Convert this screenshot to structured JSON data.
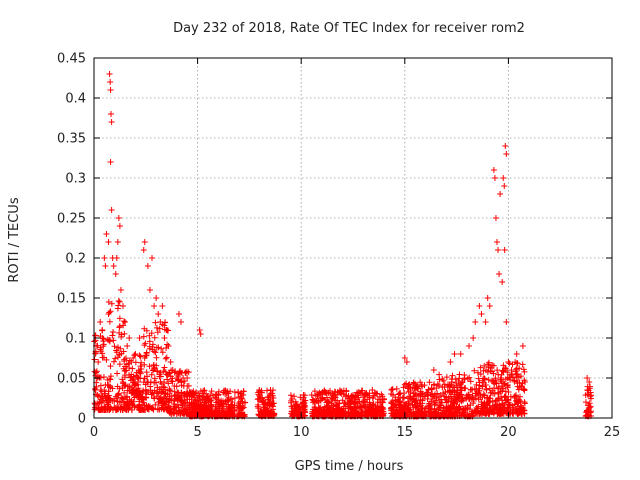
{
  "chart_data": {
    "type": "scatter",
    "title": "Day 232 of 2018, Rate Of TEC Index for receiver rom2",
    "xlabel": "GPS time / hours",
    "ylabel": "ROTI / TECUs",
    "xlim": [
      0,
      25
    ],
    "ylim": [
      0,
      0.45
    ],
    "xticks": [
      0,
      5,
      10,
      15,
      20,
      25
    ],
    "xtick_labels": [
      "0",
      "5",
      "10",
      "15",
      "20",
      "25"
    ],
    "yticks": [
      0,
      0.05,
      0.1,
      0.15,
      0.2,
      0.25,
      0.3,
      0.35,
      0.4,
      0.45
    ],
    "ytick_labels": [
      "0",
      "0.05",
      "0.1",
      "0.15",
      "0.2",
      "0.25",
      "0.3",
      "0.35",
      "0.4",
      "0.45"
    ],
    "grid": true,
    "marker": "+",
    "marker_color": "#ff0000",
    "series": [
      {
        "name": "ROTI",
        "points": [
          [
            0.1,
            0.09
          ],
          [
            0.2,
            0.07
          ],
          [
            0.3,
            0.12
          ],
          [
            0.4,
            0.11
          ],
          [
            0.5,
            0.2
          ],
          [
            0.55,
            0.19
          ],
          [
            0.6,
            0.23
          ],
          [
            0.7,
            0.22
          ],
          [
            0.75,
            0.43
          ],
          [
            0.78,
            0.42
          ],
          [
            0.8,
            0.41
          ],
          [
            0.82,
            0.38
          ],
          [
            0.85,
            0.37
          ],
          [
            0.8,
            0.32
          ],
          [
            0.85,
            0.26
          ],
          [
            0.9,
            0.2
          ],
          [
            0.95,
            0.19
          ],
          [
            1.05,
            0.18
          ],
          [
            1.1,
            0.2
          ],
          [
            1.2,
            0.25
          ],
          [
            1.25,
            0.24
          ],
          [
            1.15,
            0.22
          ],
          [
            1.3,
            0.16
          ],
          [
            1.4,
            0.14
          ],
          [
            1.5,
            0.12
          ],
          [
            1.6,
            0.09
          ],
          [
            1.7,
            0.1
          ],
          [
            1.8,
            0.07
          ],
          [
            2.0,
            0.08
          ],
          [
            2.2,
            0.1
          ],
          [
            2.4,
            0.21
          ],
          [
            2.45,
            0.22
          ],
          [
            2.6,
            0.19
          ],
          [
            2.7,
            0.16
          ],
          [
            2.8,
            0.2
          ],
          [
            2.9,
            0.14
          ],
          [
            3.0,
            0.15
          ],
          [
            3.1,
            0.13
          ],
          [
            3.2,
            0.12
          ],
          [
            3.3,
            0.14
          ],
          [
            3.4,
            0.1
          ],
          [
            3.5,
            0.11
          ],
          [
            3.6,
            0.09
          ],
          [
            3.7,
            0.07
          ],
          [
            3.8,
            0.06
          ],
          [
            4.0,
            0.05
          ],
          [
            4.1,
            0.13
          ],
          [
            4.2,
            0.12
          ],
          [
            4.3,
            0.05
          ],
          [
            4.5,
            0.04
          ],
          [
            5.1,
            0.11
          ],
          [
            5.15,
            0.105
          ],
          [
            15.0,
            0.075
          ],
          [
            15.1,
            0.07
          ],
          [
            16.4,
            0.06
          ],
          [
            17.2,
            0.07
          ],
          [
            17.4,
            0.08
          ],
          [
            17.7,
            0.08
          ],
          [
            18.1,
            0.09
          ],
          [
            18.3,
            0.1
          ],
          [
            18.4,
            0.12
          ],
          [
            18.6,
            0.14
          ],
          [
            18.7,
            0.13
          ],
          [
            18.9,
            0.12
          ],
          [
            19.0,
            0.15
          ],
          [
            19.1,
            0.14
          ],
          [
            19.3,
            0.31
          ],
          [
            19.35,
            0.3
          ],
          [
            19.4,
            0.25
          ],
          [
            19.45,
            0.22
          ],
          [
            19.5,
            0.21
          ],
          [
            19.55,
            0.18
          ],
          [
            19.6,
            0.28
          ],
          [
            19.7,
            0.17
          ],
          [
            19.75,
            0.3
          ],
          [
            19.8,
            0.29
          ],
          [
            19.85,
            0.34
          ],
          [
            19.9,
            0.33
          ],
          [
            19.82,
            0.21
          ],
          [
            19.9,
            0.12
          ],
          [
            20.0,
            0.07
          ],
          [
            20.4,
            0.08
          ],
          [
            20.7,
            0.09
          ],
          [
            20.8,
            0.045
          ],
          [
            23.8,
            0.05
          ],
          [
            23.9,
            0.045
          ]
        ]
      }
    ],
    "density_bands": [
      {
        "x": [
          0.0,
          0.7
        ],
        "y": [
          0.01,
          0.11
        ]
      },
      {
        "x": [
          0.7,
          1.6
        ],
        "y": [
          0.01,
          0.15
        ]
      },
      {
        "x": [
          1.6,
          2.4
        ],
        "y": [
          0.01,
          0.08
        ]
      },
      {
        "x": [
          2.4,
          3.6
        ],
        "y": [
          0.01,
          0.12
        ]
      },
      {
        "x": [
          3.6,
          4.6
        ],
        "y": [
          0.005,
          0.06
        ]
      },
      {
        "x": [
          4.6,
          7.3
        ],
        "y": [
          0.002,
          0.035
        ]
      },
      {
        "x": [
          7.9,
          8.7
        ],
        "y": [
          0.002,
          0.035
        ]
      },
      {
        "x": [
          9.5,
          10.2
        ],
        "y": [
          0.002,
          0.03
        ]
      },
      {
        "x": [
          10.5,
          14.0
        ],
        "y": [
          0.002,
          0.035
        ]
      },
      {
        "x": [
          14.3,
          16.5
        ],
        "y": [
          0.002,
          0.045
        ]
      },
      {
        "x": [
          16.5,
          18.3
        ],
        "y": [
          0.002,
          0.055
        ]
      },
      {
        "x": [
          18.3,
          20.8
        ],
        "y": [
          0.005,
          0.07
        ]
      },
      {
        "x": [
          23.7,
          24.0
        ],
        "y": [
          0.002,
          0.045
        ]
      }
    ]
  }
}
